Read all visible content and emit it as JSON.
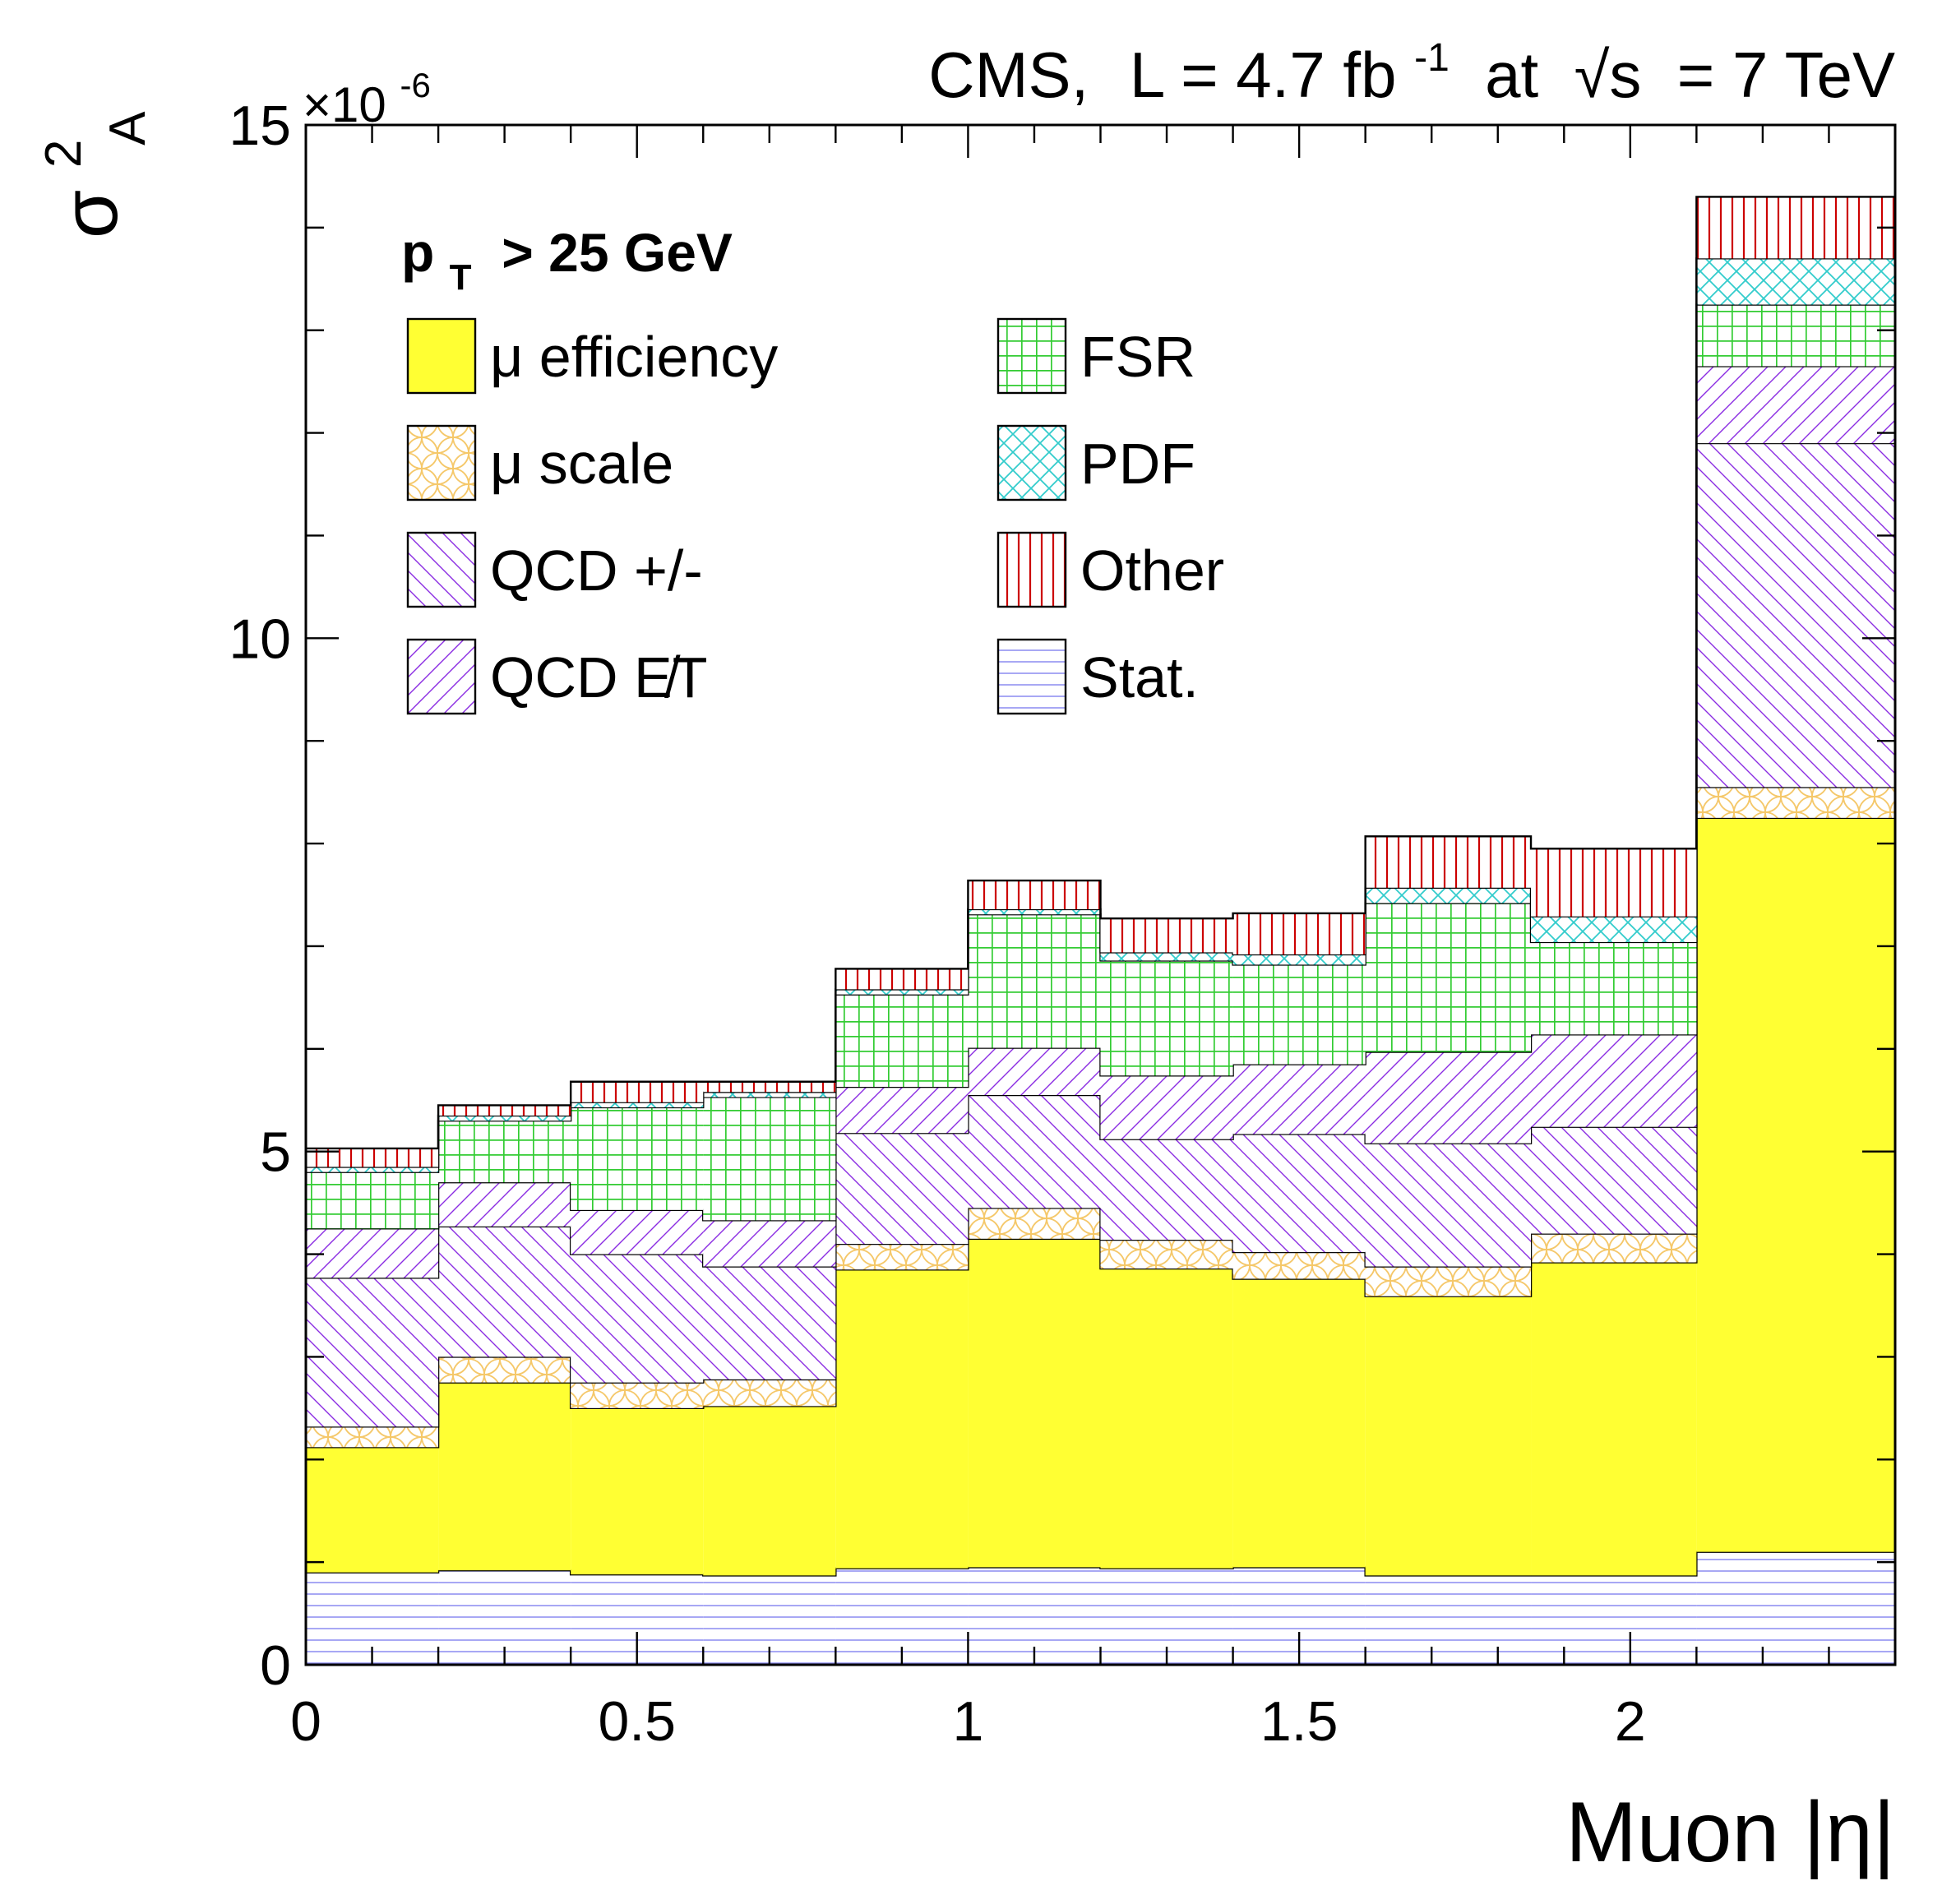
{
  "chart_data": {
    "type": "bar",
    "stacked": true,
    "header": {
      "experiment": "CMS,",
      "lumi_prefix": "L = 4.7 fb",
      "lumi_exp": "-1",
      "energy_mid": " at ",
      "sqrt": "√s",
      "energy_suffix": " = 7 TeV"
    },
    "y_axis": {
      "symbol": "σ",
      "superscript": "2",
      "subscript": "A",
      "multiplier": "×10",
      "multiplier_exp": "-6",
      "ylim": [
        0,
        15
      ],
      "major_ticks": [
        0,
        5,
        10,
        15
      ],
      "tick_labels": [
        "0",
        "5",
        "10",
        "15"
      ],
      "minor_step": 1
    },
    "x_axis": {
      "label": "Muon |η|",
      "xlim": [
        0,
        2.4
      ],
      "major_ticks": [
        0,
        0.5,
        1,
        1.5,
        2
      ],
      "tick_labels": [
        "0",
        "0.5",
        "1",
        "1.5",
        "2"
      ],
      "minor_step": 0.1
    },
    "legend_title": {
      "main": "p",
      "sub": "T",
      "rest": " > 25 GeV"
    },
    "bin_edges": [
      0,
      0.2,
      0.4,
      0.6,
      0.8,
      1.0,
      1.2,
      1.4,
      1.6,
      1.85,
      2.1,
      2.4
    ],
    "series": [
      {
        "name": "Stat.",
        "pattern": "stat",
        "values": [
          0.9,
          0.92,
          0.88,
          0.87,
          0.94,
          0.95,
          0.94,
          0.95,
          0.87,
          0.87,
          1.1
        ]
      },
      {
        "name": "μ efficiency",
        "pattern": "eff",
        "values": [
          1.22,
          1.83,
          1.62,
          1.65,
          2.91,
          3.2,
          2.92,
          2.81,
          2.72,
          3.05,
          7.15
        ]
      },
      {
        "name": "μ scale",
        "pattern": "scale",
        "values": [
          0.2,
          0.25,
          0.25,
          0.26,
          0.25,
          0.3,
          0.28,
          0.26,
          0.29,
          0.28,
          0.3
        ]
      },
      {
        "name": "QCD +/-",
        "pattern": "qcdpm",
        "values": [
          1.45,
          1.27,
          1.25,
          1.1,
          1.08,
          1.1,
          0.98,
          1.15,
          1.2,
          1.04,
          3.35
        ]
      },
      {
        "name": "QCD E̸T",
        "pattern": "qcdmet",
        "values": [
          0.48,
          0.43,
          0.43,
          0.45,
          0.45,
          0.46,
          0.62,
          0.68,
          0.89,
          0.9,
          0.75
        ]
      },
      {
        "name": "FSR",
        "pattern": "fsr",
        "values": [
          0.55,
          0.6,
          1.0,
          1.2,
          0.9,
          1.3,
          1.12,
          0.97,
          1.45,
          0.9,
          0.6
        ]
      },
      {
        "name": "PDF",
        "pattern": "pdf",
        "values": [
          0.05,
          0.05,
          0.05,
          0.05,
          0.05,
          0.05,
          0.08,
          0.1,
          0.15,
          0.25,
          0.45
        ]
      },
      {
        "name": "Other",
        "pattern": "other",
        "values": [
          0.18,
          0.1,
          0.2,
          0.1,
          0.2,
          0.28,
          0.33,
          0.4,
          0.5,
          0.66,
          0.6
        ]
      }
    ],
    "legend_columns": [
      [
        "μ efficiency",
        "μ scale",
        "QCD +/-",
        "QCD E̸T"
      ],
      [
        "FSR",
        "PDF",
        "Other",
        "Stat."
      ]
    ],
    "colors": {
      "eff": "#ffff33",
      "scale": "#f5c86a",
      "qcd": "#8a2be2",
      "fsr": "#33cc33",
      "pdf": "#33cccc",
      "other": "#cc0000",
      "stat": "#8c8cf0"
    }
  }
}
